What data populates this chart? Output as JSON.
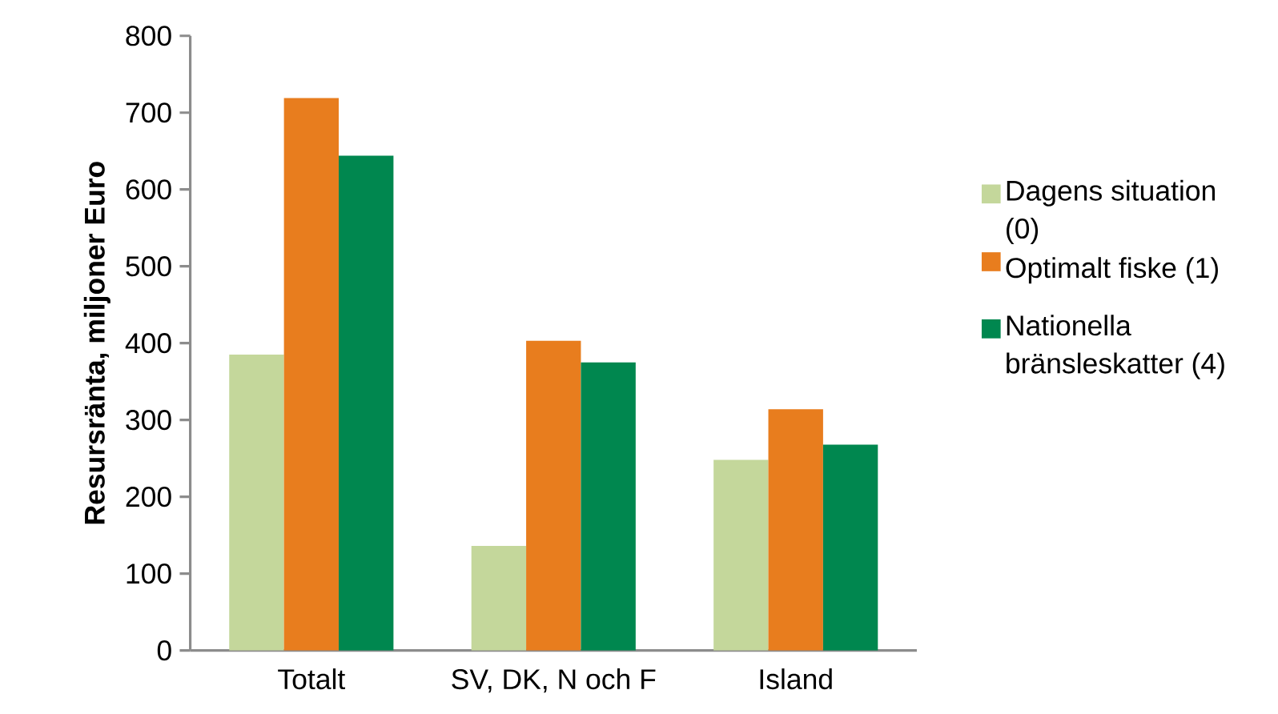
{
  "chart_data": {
    "type": "bar",
    "ylabel": "Resursränta, miljoner Euro",
    "categories": [
      "Totalt",
      "SV, DK, N och F",
      "Island"
    ],
    "series": [
      {
        "name": "Dagens situation (0)",
        "color": "#c4d79b",
        "values": [
          385,
          136,
          248
        ]
      },
      {
        "name": "Optimalt fiske (1)",
        "color": "#e87d1e",
        "values": [
          719,
          403,
          314
        ]
      },
      {
        "name": "Nationella bränsleskatter (4)",
        "color": "#00874f",
        "values": [
          644,
          375,
          268
        ]
      }
    ],
    "ylim": [
      0,
      800
    ],
    "yticks": [
      0,
      100,
      200,
      300,
      400,
      500,
      600,
      700,
      800
    ],
    "grid": false,
    "legend": "right"
  }
}
